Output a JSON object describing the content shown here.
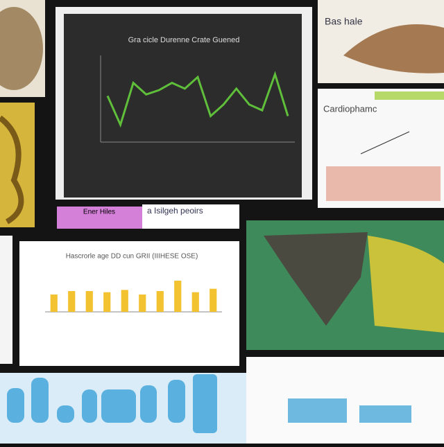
{
  "line_chart": {
    "type": "line",
    "title": "Gra cicle Durenne Crate Guened",
    "values": [
      32,
      12,
      41,
      33,
      36,
      41,
      37,
      45,
      18,
      26,
      37,
      26,
      22,
      47,
      18
    ],
    "ylim": [
      0,
      60
    ],
    "color": "#5fbf3a"
  },
  "bar_chart": {
    "type": "bar",
    "title": "Hascrorle age DD cun GRII (IIIHESE OSE)",
    "values": [
      30,
      36,
      36,
      34,
      38,
      30,
      36,
      54,
      34,
      40
    ],
    "ylim": [
      0,
      60
    ],
    "color": "#f2c230"
  },
  "labels": {
    "whale": "Bas hale",
    "infographic": "Cardiophamc",
    "pink_note": "Ener Hiles",
    "caption": "a Isilgeh peoirs"
  }
}
